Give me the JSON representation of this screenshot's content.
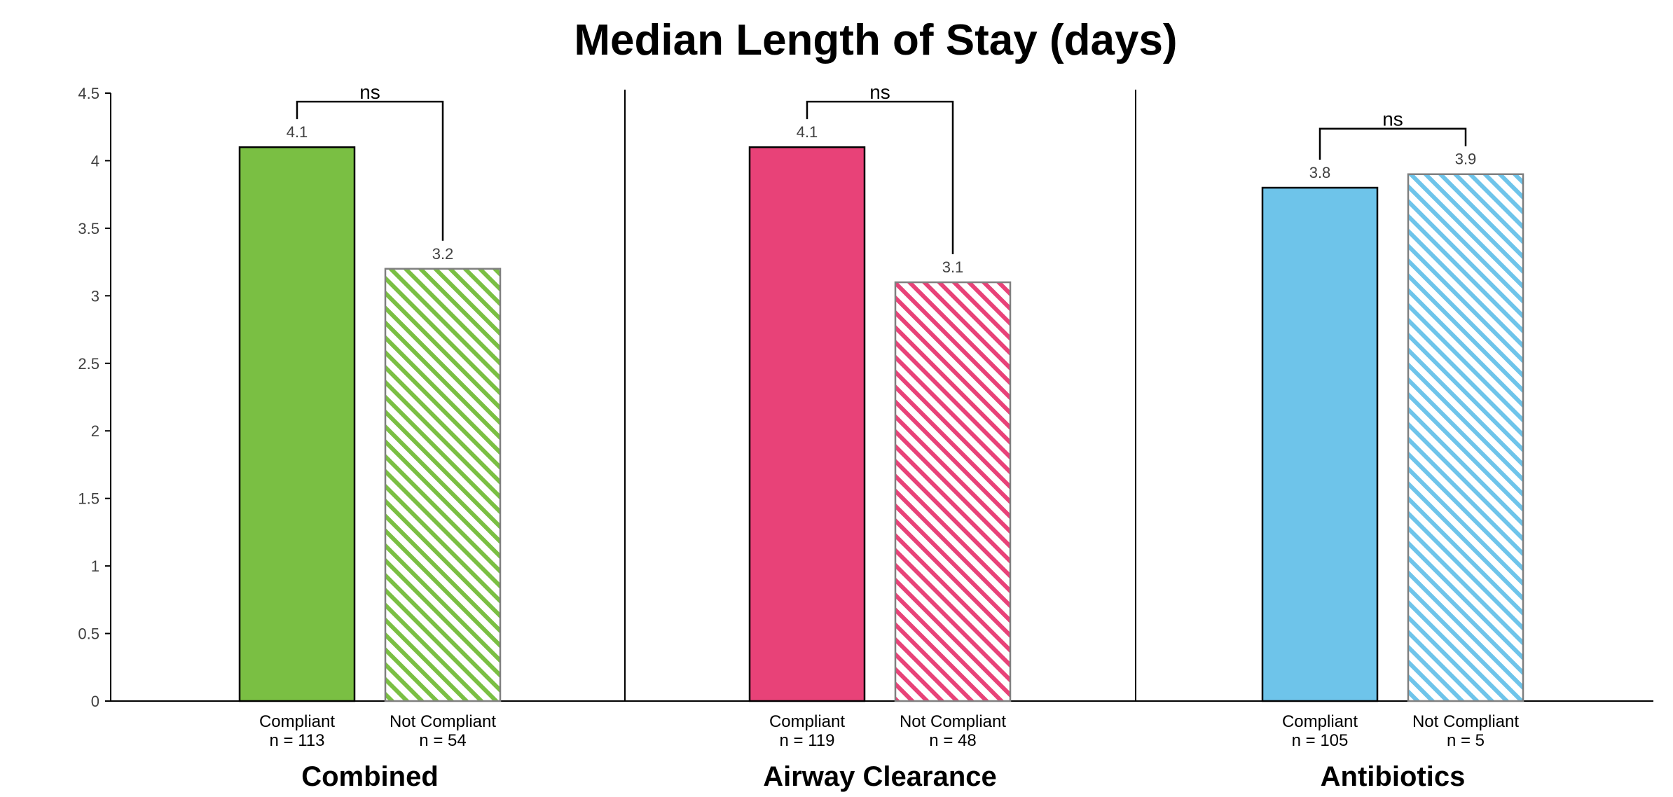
{
  "chart_data": {
    "type": "bar",
    "title": "Median Length of Stay (days)",
    "ylim": [
      0,
      4.5
    ],
    "yticks": [
      "0",
      "0.5",
      "1",
      "1.5",
      "2",
      "2.5",
      "3",
      "3.5",
      "4",
      "4.5"
    ],
    "grid": false,
    "groups": [
      {
        "name": "Combined",
        "color": "#7abf43",
        "significance": "ns",
        "bars": [
          {
            "label": "Compliant",
            "n": "n = 113",
            "value": 4.1,
            "value_label": "4.1",
            "pattern": "solid"
          },
          {
            "label": "Not Compliant",
            "n": "n = 54",
            "value": 3.2,
            "value_label": "3.2",
            "pattern": "hatched"
          }
        ]
      },
      {
        "name": "Airway Clearance",
        "color": "#e84278",
        "significance": "ns",
        "bars": [
          {
            "label": "Compliant",
            "n": "n = 119",
            "value": 4.1,
            "value_label": "4.1",
            "pattern": "solid"
          },
          {
            "label": "Not Compliant",
            "n": "n = 48",
            "value": 3.1,
            "value_label": "3.1",
            "pattern": "hatched"
          }
        ]
      },
      {
        "name": "Antibiotics",
        "color": "#6ec4ea",
        "significance": "ns",
        "bars": [
          {
            "label": "Compliant",
            "n": "n = 105",
            "value": 3.8,
            "value_label": "3.8",
            "pattern": "solid"
          },
          {
            "label": "Not Compliant",
            "n": "n = 5",
            "value": 3.9,
            "value_label": "3.9",
            "pattern": "hatched"
          }
        ]
      }
    ]
  }
}
